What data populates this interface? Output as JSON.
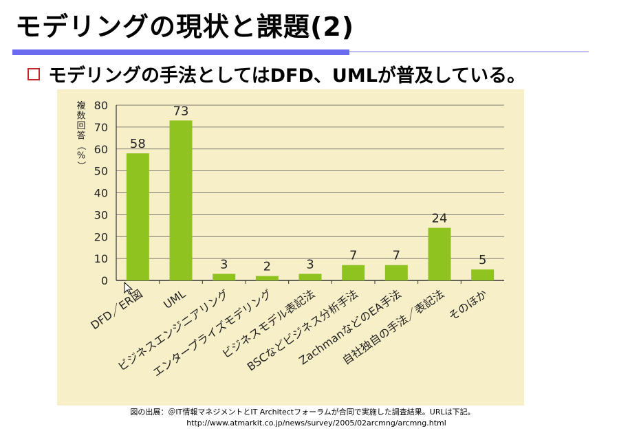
{
  "slide": {
    "title": "モデリングの現状と課題(2)",
    "bullet": "モデリングの手法としてはDFD、UMLが普及している。",
    "source_line1": "図の出展：＠IT情報マネジメントとIT Architectフォーラムが合同で実施した調査結果。URLは下記。",
    "source_line2": "http://www.atmarkit.co.jp/news/survey/2005/02arcmng/arcmng.html"
  },
  "colors": {
    "title_rule": "#6b6bef",
    "bullet_box": "#c0282f",
    "chart_background": "#f7efc8",
    "bar_fill": "#8fc31f",
    "gridline": "#555555"
  },
  "chart_data": {
    "type": "bar",
    "title": "",
    "ylabel": "複数回答（%）",
    "xlabel": "",
    "ylim": [
      0,
      80
    ],
    "yticks": [
      0,
      10,
      20,
      30,
      40,
      50,
      60,
      70,
      80
    ],
    "grid": true,
    "categories": [
      "DFD／ER図",
      "UML",
      "ビジネスエンジニアリング",
      "エンタープライズモデリング",
      "ビジネスモデル表記法",
      "BSCなどビジネス分析手法",
      "ZachmanなどのEA手法",
      "自社独自の手法／表記法",
      "そのほか"
    ],
    "values": [
      58,
      73,
      3,
      2,
      3,
      7,
      7,
      24,
      5
    ],
    "data_labels": [
      "58",
      "73",
      "3",
      "2",
      "3",
      "7",
      "7",
      "24",
      "5"
    ]
  }
}
